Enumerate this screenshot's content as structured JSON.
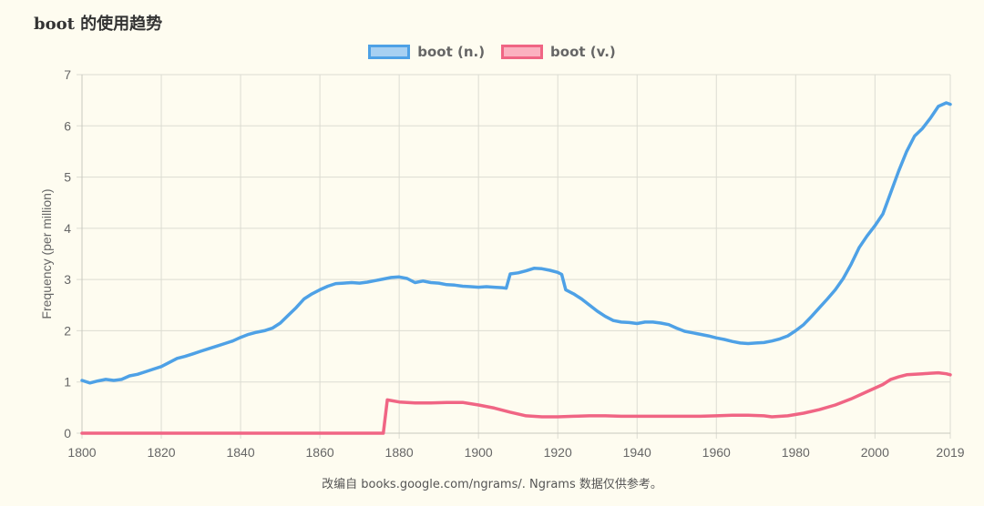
{
  "chart_data": {
    "type": "line",
    "title": "boot 的使用趋势",
    "ylabel": "Frequency (per million)",
    "xlabel": "",
    "xlim": [
      1800,
      2019
    ],
    "ylim": [
      0,
      7
    ],
    "x_ticks": [
      "1800",
      "1820",
      "1840",
      "1860",
      "1880",
      "1900",
      "1920",
      "1940",
      "1960",
      "1980",
      "2000",
      "2019"
    ],
    "y_ticks": [
      "0",
      "1",
      "2",
      "3",
      "4",
      "5",
      "6",
      "7"
    ],
    "grid": true,
    "legend": "top-center",
    "series": [
      {
        "name": "boot (n.)",
        "color": "#4ea1e6",
        "fill": "#a7d0f2",
        "points": [
          [
            1800,
            1.03
          ],
          [
            1802,
            0.98
          ],
          [
            1804,
            1.02
          ],
          [
            1806,
            1.05
          ],
          [
            1808,
            1.03
          ],
          [
            1810,
            1.05
          ],
          [
            1812,
            1.12
          ],
          [
            1814,
            1.15
          ],
          [
            1816,
            1.2
          ],
          [
            1818,
            1.25
          ],
          [
            1820,
            1.3
          ],
          [
            1822,
            1.38
          ],
          [
            1824,
            1.46
          ],
          [
            1826,
            1.5
          ],
          [
            1828,
            1.55
          ],
          [
            1830,
            1.6
          ],
          [
            1832,
            1.65
          ],
          [
            1834,
            1.7
          ],
          [
            1836,
            1.75
          ],
          [
            1838,
            1.8
          ],
          [
            1840,
            1.87
          ],
          [
            1842,
            1.93
          ],
          [
            1844,
            1.97
          ],
          [
            1846,
            2.0
          ],
          [
            1848,
            2.05
          ],
          [
            1850,
            2.15
          ],
          [
            1852,
            2.3
          ],
          [
            1854,
            2.45
          ],
          [
            1856,
            2.62
          ],
          [
            1858,
            2.72
          ],
          [
            1860,
            2.8
          ],
          [
            1862,
            2.87
          ],
          [
            1864,
            2.92
          ],
          [
            1866,
            2.93
          ],
          [
            1868,
            2.94
          ],
          [
            1870,
            2.93
          ],
          [
            1872,
            2.95
          ],
          [
            1874,
            2.98
          ],
          [
            1876,
            3.01
          ],
          [
            1878,
            3.04
          ],
          [
            1880,
            3.05
          ],
          [
            1882,
            3.02
          ],
          [
            1884,
            2.94
          ],
          [
            1886,
            2.97
          ],
          [
            1888,
            2.94
          ],
          [
            1890,
            2.93
          ],
          [
            1892,
            2.9
          ],
          [
            1894,
            2.89
          ],
          [
            1896,
            2.87
          ],
          [
            1898,
            2.86
          ],
          [
            1900,
            2.85
          ],
          [
            1902,
            2.86
          ],
          [
            1904,
            2.85
          ],
          [
            1906,
            2.84
          ],
          [
            1907,
            2.83
          ],
          [
            1908,
            3.11
          ],
          [
            1910,
            3.13
          ],
          [
            1912,
            3.17
          ],
          [
            1914,
            3.22
          ],
          [
            1916,
            3.21
          ],
          [
            1918,
            3.18
          ],
          [
            1920,
            3.14
          ],
          [
            1921,
            3.1
          ],
          [
            1922,
            2.8
          ],
          [
            1924,
            2.72
          ],
          [
            1926,
            2.62
          ],
          [
            1928,
            2.5
          ],
          [
            1930,
            2.38
          ],
          [
            1932,
            2.28
          ],
          [
            1934,
            2.2
          ],
          [
            1936,
            2.17
          ],
          [
            1938,
            2.16
          ],
          [
            1940,
            2.14
          ],
          [
            1942,
            2.17
          ],
          [
            1944,
            2.17
          ],
          [
            1946,
            2.15
          ],
          [
            1948,
            2.12
          ],
          [
            1950,
            2.05
          ],
          [
            1952,
            1.99
          ],
          [
            1954,
            1.96
          ],
          [
            1956,
            1.93
          ],
          [
            1958,
            1.9
          ],
          [
            1960,
            1.86
          ],
          [
            1962,
            1.83
          ],
          [
            1964,
            1.79
          ],
          [
            1966,
            1.76
          ],
          [
            1968,
            1.75
          ],
          [
            1970,
            1.76
          ],
          [
            1972,
            1.77
          ],
          [
            1974,
            1.8
          ],
          [
            1976,
            1.84
          ],
          [
            1978,
            1.9
          ],
          [
            1980,
            2.0
          ],
          [
            1982,
            2.12
          ],
          [
            1984,
            2.28
          ],
          [
            1986,
            2.45
          ],
          [
            1988,
            2.62
          ],
          [
            1990,
            2.8
          ],
          [
            1992,
            3.02
          ],
          [
            1994,
            3.3
          ],
          [
            1996,
            3.62
          ],
          [
            1998,
            3.85
          ],
          [
            2000,
            4.05
          ],
          [
            2002,
            4.28
          ],
          [
            2004,
            4.7
          ],
          [
            2006,
            5.12
          ],
          [
            2008,
            5.5
          ],
          [
            2010,
            5.8
          ],
          [
            2012,
            5.95
          ],
          [
            2014,
            6.15
          ],
          [
            2016,
            6.38
          ],
          [
            2018,
            6.45
          ],
          [
            2019,
            6.42
          ]
        ]
      },
      {
        "name": "boot (v.)",
        "color": "#f06584",
        "fill": "#fbb1c0",
        "points": [
          [
            1800,
            0.0
          ],
          [
            1876,
            0.0
          ],
          [
            1877,
            0.65
          ],
          [
            1880,
            0.61
          ],
          [
            1884,
            0.59
          ],
          [
            1888,
            0.59
          ],
          [
            1892,
            0.6
          ],
          [
            1896,
            0.6
          ],
          [
            1900,
            0.55
          ],
          [
            1904,
            0.49
          ],
          [
            1908,
            0.41
          ],
          [
            1912,
            0.34
          ],
          [
            1916,
            0.32
          ],
          [
            1920,
            0.32
          ],
          [
            1924,
            0.33
          ],
          [
            1928,
            0.34
          ],
          [
            1932,
            0.34
          ],
          [
            1936,
            0.33
          ],
          [
            1940,
            0.33
          ],
          [
            1944,
            0.33
          ],
          [
            1948,
            0.33
          ],
          [
            1952,
            0.33
          ],
          [
            1956,
            0.33
          ],
          [
            1960,
            0.34
          ],
          [
            1964,
            0.35
          ],
          [
            1968,
            0.35
          ],
          [
            1972,
            0.34
          ],
          [
            1974,
            0.32
          ],
          [
            1978,
            0.34
          ],
          [
            1982,
            0.39
          ],
          [
            1986,
            0.46
          ],
          [
            1990,
            0.55
          ],
          [
            1994,
            0.67
          ],
          [
            1998,
            0.81
          ],
          [
            2002,
            0.95
          ],
          [
            2004,
            1.05
          ],
          [
            2006,
            1.1
          ],
          [
            2008,
            1.14
          ],
          [
            2010,
            1.15
          ],
          [
            2012,
            1.16
          ],
          [
            2014,
            1.17
          ],
          [
            2016,
            1.18
          ],
          [
            2018,
            1.16
          ],
          [
            2019,
            1.14
          ]
        ]
      }
    ]
  },
  "footer": {
    "text": "改编自 books.google.com/ngrams/. Ngrams 数据仅供参考。"
  }
}
